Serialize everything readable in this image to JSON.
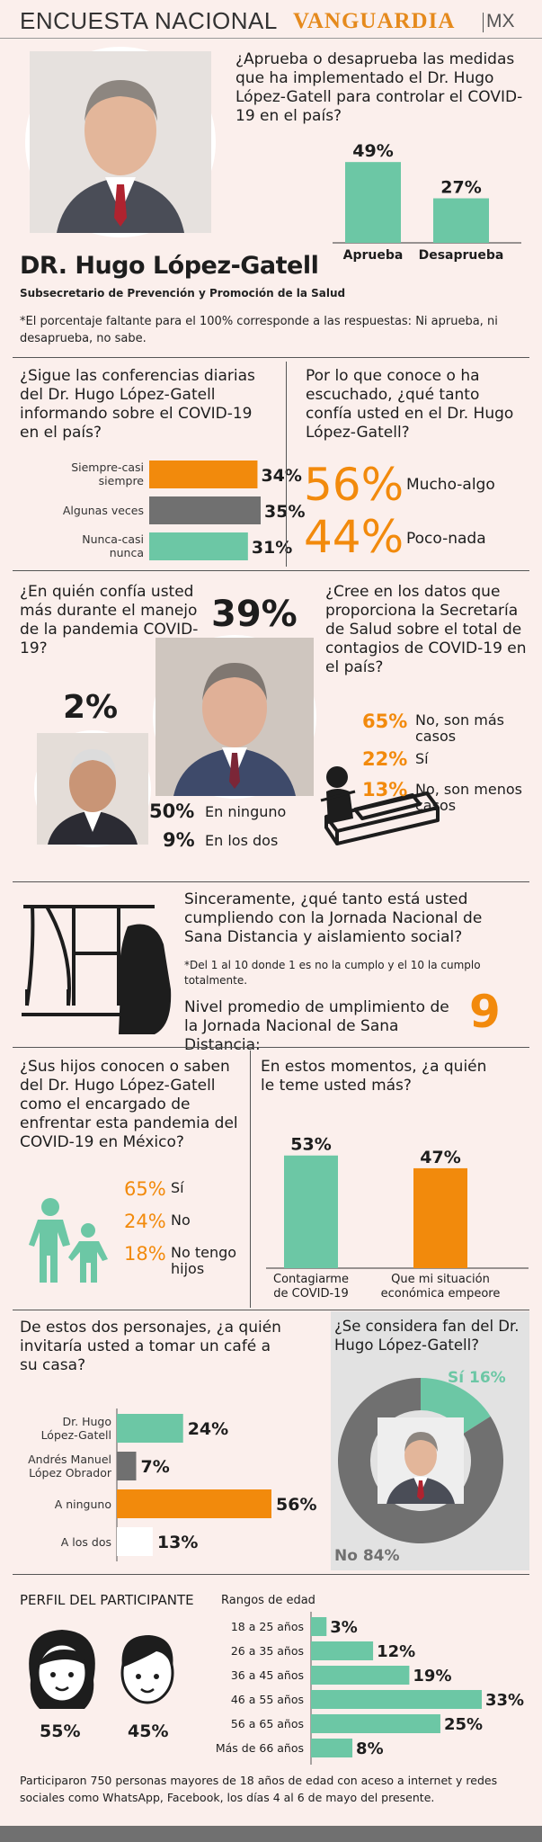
{
  "header": {
    "section_title": "ENCUESTA NACIONAL",
    "brand": "VANGUARDIA",
    "brand_suffix": "MX"
  },
  "intro": {
    "name": "DR. Hugo López-Gatell",
    "role": "Subsecretario de Prevención y Promoción de la Salud",
    "footnote": "*El porcentaje faltante para el 100% corresponde a las respuestas: Ni aprueba, ni desaprueba, no sabe.",
    "question": "¿Aprueba o desaprueba las medidas que ha implementado el Dr. Hugo López-Gatell para controlar el COVID-19 en el país?"
  },
  "q_conferences": {
    "question": "¿Sigue las conferencias diarias del Dr. Hugo López-Gatell informando sobre el COVID-19 en el país?"
  },
  "q_trust": {
    "question": "Por lo que conoce o ha escuchado, ¿qué tanto confía usted en el Dr. Hugo López-Gatell?",
    "items": [
      {
        "pct": "56%",
        "label": "Mucho-algo"
      },
      {
        "pct": "44%",
        "label": "Poco-nada"
      }
    ]
  },
  "q_who_trust": {
    "question": "¿En quién confía usted más durante el manejo de la pandemia COVID-19?",
    "gatell_pct": "39%",
    "amlo_pct": "2%",
    "others": [
      {
        "pct": "50%",
        "label": "En ninguno"
      },
      {
        "pct": "9%",
        "label": "En los dos"
      }
    ]
  },
  "q_data": {
    "question": "¿Cree en los datos que proporciona la Secretaría de Salud sobre el total de contagios de COVID-19 en el país?",
    "items": [
      {
        "pct": "65%",
        "label": "No, son más casos"
      },
      {
        "pct": "22%",
        "label": "Sí"
      },
      {
        "pct": "13%",
        "label": "No, son menos casos"
      }
    ]
  },
  "q_distance": {
    "question": "Sinceramente, ¿qué tanto está usted cumpliendo con la Jornada Nacional de Sana Distancia y aislamiento social?",
    "note": "*Del 1 al 10 donde 1 es no la cumplo y el 10 la cumplo totalmente.",
    "avg_label": "Nivel promedio de umplimiento de la Jornada Nacional de Sana Distancia:",
    "avg_value": "9"
  },
  "q_children": {
    "question": "¿Sus hijos conocen o saben del Dr. Hugo López-Gatell como el encargado de enfrentar esta pandemia del COVID-19 en México?",
    "items": [
      {
        "pct": "65%",
        "label": "Sí"
      },
      {
        "pct": "24%",
        "label": "No"
      },
      {
        "pct": "18%",
        "label": "No tengo hijos"
      }
    ]
  },
  "q_fear": {
    "question": "En estos momentos, ¿a quién le teme usted más?"
  },
  "q_coffee": {
    "question": "De estos dos personajes, ¿a quién invitaría usted a tomar un café a su casa?"
  },
  "q_fan": {
    "question": "¿Se considera fan del Dr. Hugo López-Gatell?",
    "yes_label": "Sí 16%",
    "no_label": "No 84%"
  },
  "profile": {
    "title": "PERFIL DEL PARTICIPANTE",
    "ages_title": "Rangos de edad",
    "women_pct": "55%",
    "men_pct": "45%",
    "footer": "Participaron 750 personas mayores de 18 años de edad con aceso a internet y redes sociales como WhatsApp, Facebook, los días 4 al 6 de mayo del presente."
  },
  "chart_data": [
    {
      "type": "bar",
      "id": "approval",
      "categories": [
        "Aprueba",
        "Desaprueba"
      ],
      "values": [
        49,
        27
      ],
      "labels": [
        "49%",
        "27%"
      ],
      "colors": [
        "#6cc7a5",
        "#6cc7a5"
      ]
    },
    {
      "type": "bar",
      "id": "conferences",
      "orientation": "horizontal",
      "categories": [
        "Siempre-casi siempre",
        "Algunas veces",
        "Nunca-casi nunca"
      ],
      "values": [
        34,
        35,
        31
      ],
      "labels": [
        "34%",
        "35%",
        "31%"
      ],
      "colors": [
        "#f28a0c",
        "#707070",
        "#6cc7a5"
      ]
    },
    {
      "type": "bar",
      "id": "fear",
      "categories": [
        "Contagiarme de COVID-19",
        "Que mi situación económica empeore"
      ],
      "values": [
        53,
        47
      ],
      "labels": [
        "53%",
        "47%"
      ],
      "colors": [
        "#6cc7a5",
        "#f28a0c"
      ]
    },
    {
      "type": "bar",
      "id": "coffee",
      "orientation": "horizontal",
      "categories": [
        "Dr. Hugo López-Gatell",
        "Andrés Manuel López Obrador",
        "A ninguno",
        "A los dos"
      ],
      "values": [
        24,
        7,
        56,
        13
      ],
      "labels": [
        "24%",
        "7%",
        "56%",
        "13%"
      ],
      "colors": [
        "#6cc7a5",
        "#707070",
        "#f28a0c",
        "#ffffff"
      ]
    },
    {
      "type": "pie",
      "id": "fan",
      "categories": [
        "Sí",
        "No"
      ],
      "values": [
        16,
        84
      ],
      "colors": [
        "#6cc7a5",
        "#707070"
      ]
    },
    {
      "type": "bar",
      "id": "ages",
      "orientation": "horizontal",
      "categories": [
        "18 a 25 años",
        "26 a 35 años",
        "36 a 45 años",
        "46 a 55 años",
        "56 a 65 años",
        "Más de 66 años"
      ],
      "values": [
        3,
        12,
        19,
        33,
        25,
        8
      ],
      "labels": [
        "3%",
        "12%",
        "19%",
        "33%",
        "25%",
        "8%"
      ],
      "colors": [
        "#6cc7a5"
      ]
    }
  ]
}
